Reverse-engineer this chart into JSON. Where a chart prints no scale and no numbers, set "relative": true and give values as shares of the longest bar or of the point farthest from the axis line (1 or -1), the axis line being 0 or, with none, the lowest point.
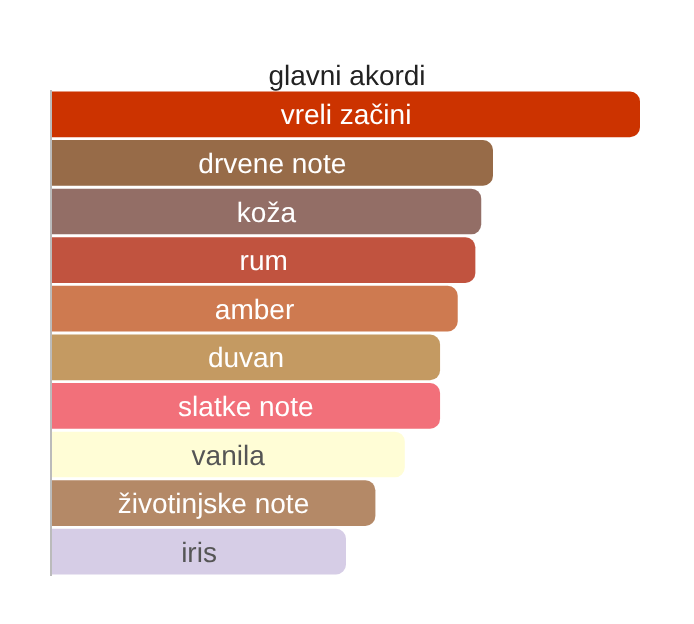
{
  "chart_data": {
    "type": "bar",
    "orientation": "horizontal",
    "relative": true,
    "title": "glavni akordi",
    "categories": [
      "vreli začini",
      "drvene note",
      "koža",
      "rum",
      "amber",
      "duvan",
      "slatke note",
      "vanila",
      "životinjske note",
      "iris"
    ],
    "values": [
      1,
      0.75,
      0.73,
      0.72,
      0.69,
      0.66,
      0.66,
      0.6,
      0.55,
      0.5
    ],
    "colors": [
      "#cc3300",
      "#976b48",
      "#936e66",
      "#c1533f",
      "#ce7a50",
      "#c49a62",
      "#f2707a",
      "#fffdd6",
      "#b48967",
      "#d6cde6"
    ],
    "legend": false
  }
}
